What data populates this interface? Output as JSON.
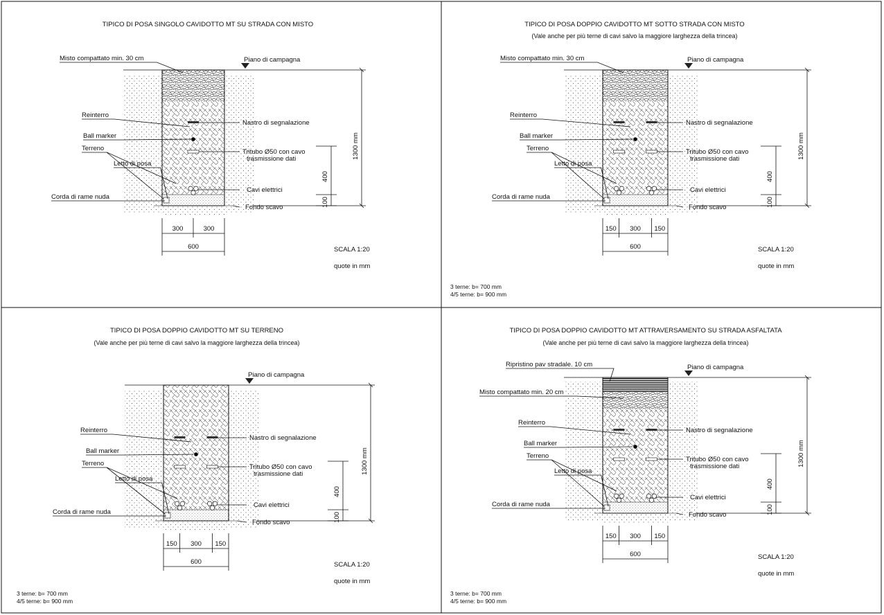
{
  "colors": {
    "line": "#111111",
    "background": "#ffffff"
  },
  "panels": [
    {
      "id": "p1",
      "title": "TIPICO DI POSA SINGOLO CAVIDOTTO MT SU STRADA CON MISTO",
      "subtitle": "",
      "labels": {
        "surface": "Misto compattato min. 30 cm",
        "ground": "Piano di campagna",
        "backfill": "Reinterro",
        "ball": "Ball marker",
        "soil": "Terreno",
        "bed": "Letto di posa",
        "copper": "Corda di rame nuda",
        "tape": "Nastro di segnalazione",
        "tube1": "Tritubo Ø50 con cavo",
        "tube2": "trasmissione dati",
        "cables": "Cavi elettrici",
        "bottom": "Fondo scavo"
      },
      "dims": {
        "total": "1300 mm",
        "h400": "400",
        "h100": "100",
        "w_parts": [
          "300",
          "300"
        ],
        "w_total": "600"
      },
      "scale": "SCALA 1:20",
      "units": "quote in mm",
      "notes": []
    },
    {
      "id": "p2",
      "title": "TIPICO DI POSA DOPPIO CAVIDOTTO MT SOTTO STRADA CON MISTO",
      "subtitle": "(Vale anche per più terne di cavi salvo la maggiore larghezza della trincea)",
      "labels": {
        "surface": "Misto compattato min. 30 cm",
        "ground": "Piano di campagna",
        "backfill": "Reinterro",
        "ball": "Ball marker",
        "soil": "Terreno",
        "bed": "Letto di posa",
        "copper": "Corda di rame nuda",
        "tape": "Nastro di segnalazione",
        "tube1": "Tritubo Ø50 con cavo",
        "tube2": "trasmissione dati",
        "cables": "Cavi elettrici",
        "bottom": "Fondo scavo"
      },
      "dims": {
        "total": "1300 mm",
        "h400": "400",
        "h100": "100",
        "w_parts": [
          "150",
          "300",
          "150"
        ],
        "w_total": "600"
      },
      "scale": "SCALA 1:20",
      "units": "quote in mm",
      "notes": [
        "3 terne: b= 700 mm",
        "4/5 terne: b= 900 mm"
      ]
    },
    {
      "id": "p3",
      "title": "TIPICO DI POSA DOPPIO CAVIDOTTO MT SU TERRENO",
      "subtitle": "(Vale anche per più terne di cavi salvo la maggiore larghezza della trincea)",
      "labels": {
        "ground": "Piano di campagna",
        "backfill": "Reinterro",
        "ball": "Ball marker",
        "soil": "Terreno",
        "bed": "Letto di posa",
        "copper": "Corda di rame nuda",
        "tape": "Nastro di segnalazione",
        "tube1": "Tritubo Ø50 con cavo",
        "tube2": "trasmissione dati",
        "cables": "Cavi elettrici",
        "bottom": "Fondo scavo"
      },
      "dims": {
        "total": "1300 mm",
        "h400": "400",
        "h100": "100",
        "w_parts": [
          "150",
          "300",
          "150"
        ],
        "w_total": "600"
      },
      "scale": "SCALA 1:20",
      "units": "quote in mm",
      "notes": [
        "3 terne: b= 700 mm",
        "4/5 terne: b= 900 mm"
      ]
    },
    {
      "id": "p4",
      "title": "TIPICO DI POSA DOPPIO CAVIDOTTO MT ATTRAVERSAMENTO SU STRADA ASFALTATA",
      "subtitle": "(Vale anche per più terne di cavi salvo la maggiore larghezza della trincea)",
      "labels": {
        "asphalt": "Ripristino pav stradale. 10 cm",
        "surface": "Misto compattato min. 20 cm",
        "ground": "Piano di campagna",
        "backfill": "Reinterro",
        "ball": "Ball marker",
        "soil": "Terreno",
        "bed": "Letto di posa",
        "copper": "Corda di rame nuda",
        "tape": "Nastro di segnalazione",
        "tube1": "Tritubo Ø50 con cavo",
        "tube2": "trasmissione dati",
        "cables": "Cavi elettrici",
        "bottom": "Fondo scavo"
      },
      "dims": {
        "total": "1300 mm",
        "h400": "400",
        "h100": "100",
        "w_parts": [
          "150",
          "300",
          "150"
        ],
        "w_total": "600"
      },
      "scale": "SCALA 1:20",
      "units": "quote in mm",
      "notes": [
        "3 terne: b= 700 mm",
        "4/5 terne: b= 900 mm"
      ]
    }
  ]
}
